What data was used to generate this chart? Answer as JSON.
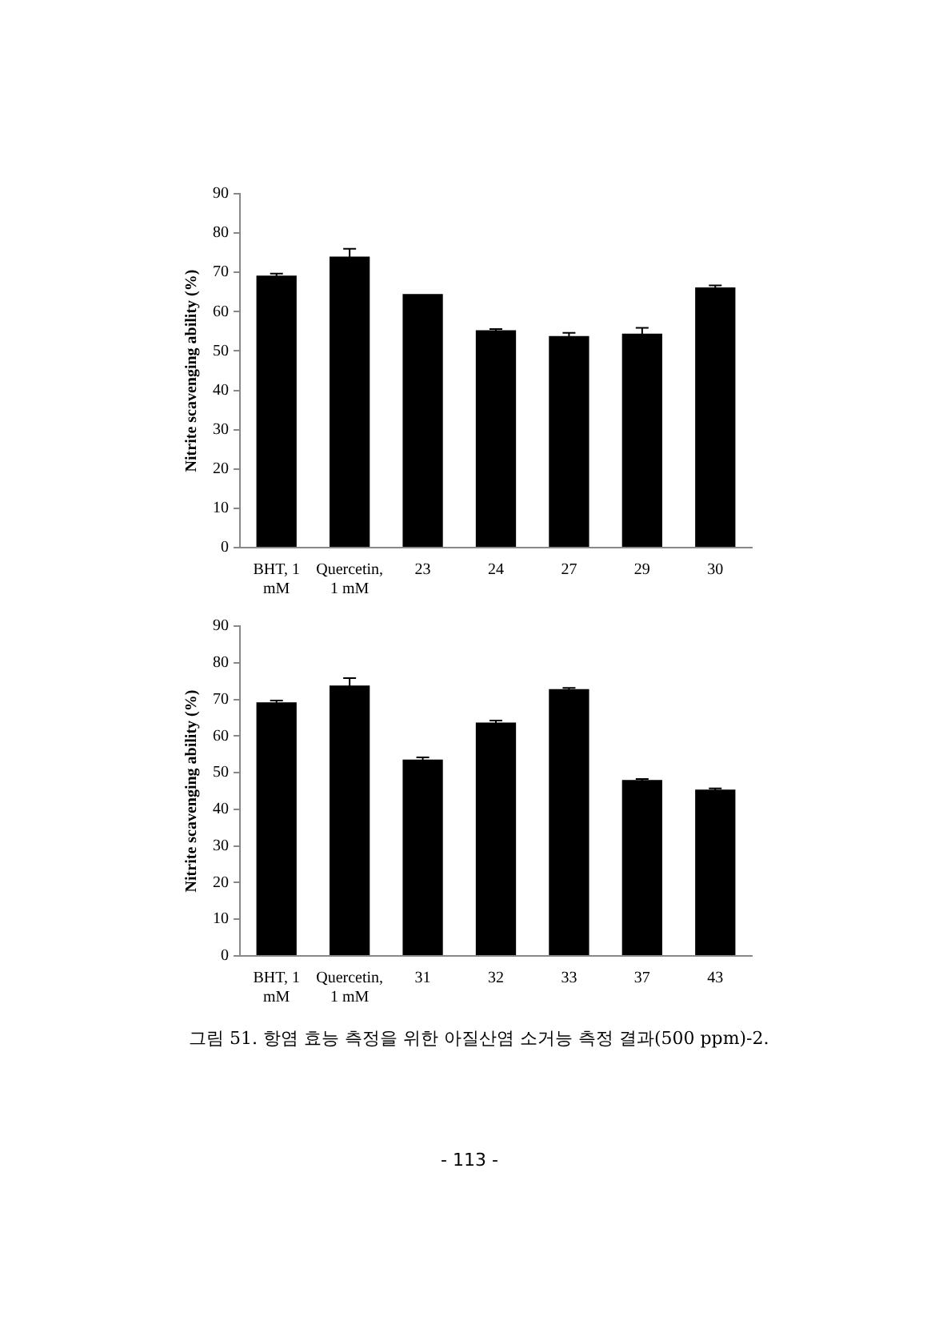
{
  "chart_data": [
    {
      "type": "bar",
      "categories": [
        "BHT, 1 mM",
        "Quercetin, 1 mM",
        "23",
        "24",
        "27",
        "29",
        "30"
      ],
      "ylabel": "Nitrite scavenging ability (%)",
      "series": [
        {
          "color": "#000000",
          "values": [
            69.2,
            74,
            64.5,
            55.3,
            53.8,
            54.4,
            66.2
          ],
          "errors": [
            0.5,
            2,
            null,
            0.3,
            0.8,
            1.5,
            0.5
          ]
        }
      ],
      "ylim": [
        0,
        90
      ],
      "yticks": [
        0,
        10,
        20,
        30,
        40,
        50,
        60,
        70,
        80,
        90
      ],
      "grid": false,
      "legend": false
    },
    {
      "type": "bar",
      "categories": [
        "BHT, 1 mM",
        "Quercetin, 1 mM",
        "31",
        "32",
        "33",
        "37",
        "43"
      ],
      "ylabel": "Nitrite scavenging ability (%)",
      "series": [
        {
          "color": "#000000",
          "values": [
            69.2,
            73.8,
            53.6,
            63.7,
            72.8,
            48,
            45.4
          ],
          "errors": [
            0.5,
            2,
            0.6,
            0.5,
            0.3,
            0.3,
            0.3
          ]
        }
      ],
      "ylim": [
        0,
        90
      ],
      "yticks": [
        0,
        10,
        20,
        30,
        40,
        50,
        60,
        70,
        80,
        90
      ],
      "grid": false,
      "legend": false,
      "annotations": [
        "그림 51. 항염 효능 측정을 위한 아질산염 소거능 측정 결과(500 ppm)-2.",
        "- 113 -"
      ]
    }
  ]
}
